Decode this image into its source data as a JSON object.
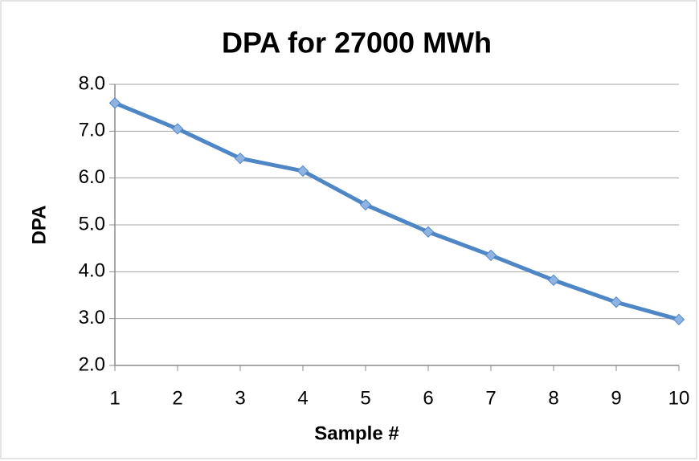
{
  "chart_data": {
    "type": "line",
    "title": "DPA for 27000 MWh",
    "x_label": "Sample #",
    "y_label": "DPA",
    "x": [
      1,
      2,
      3,
      4,
      5,
      6,
      7,
      8,
      9,
      10
    ],
    "values": [
      7.6,
      7.05,
      6.42,
      6.15,
      5.43,
      4.85,
      4.35,
      3.82,
      3.35,
      2.98
    ],
    "color": "#4f86c6",
    "marker_color": "#8fb4e3",
    "xlim": [
      1,
      10
    ],
    "xticks": [
      1,
      2,
      3,
      4,
      5,
      6,
      7,
      8,
      9,
      10
    ],
    "ylim": [
      2,
      8
    ],
    "yticks": [
      {
        "value": 2,
        "label": "2.0"
      },
      {
        "value": 3,
        "label": "3.0"
      },
      {
        "value": 4,
        "label": "4.0"
      },
      {
        "value": 5,
        "label": "5.0"
      },
      {
        "value": 6,
        "label": "6.0"
      },
      {
        "value": 7,
        "label": "7.0"
      },
      {
        "value": 8,
        "label": "8.0"
      }
    ],
    "grid": true
  }
}
